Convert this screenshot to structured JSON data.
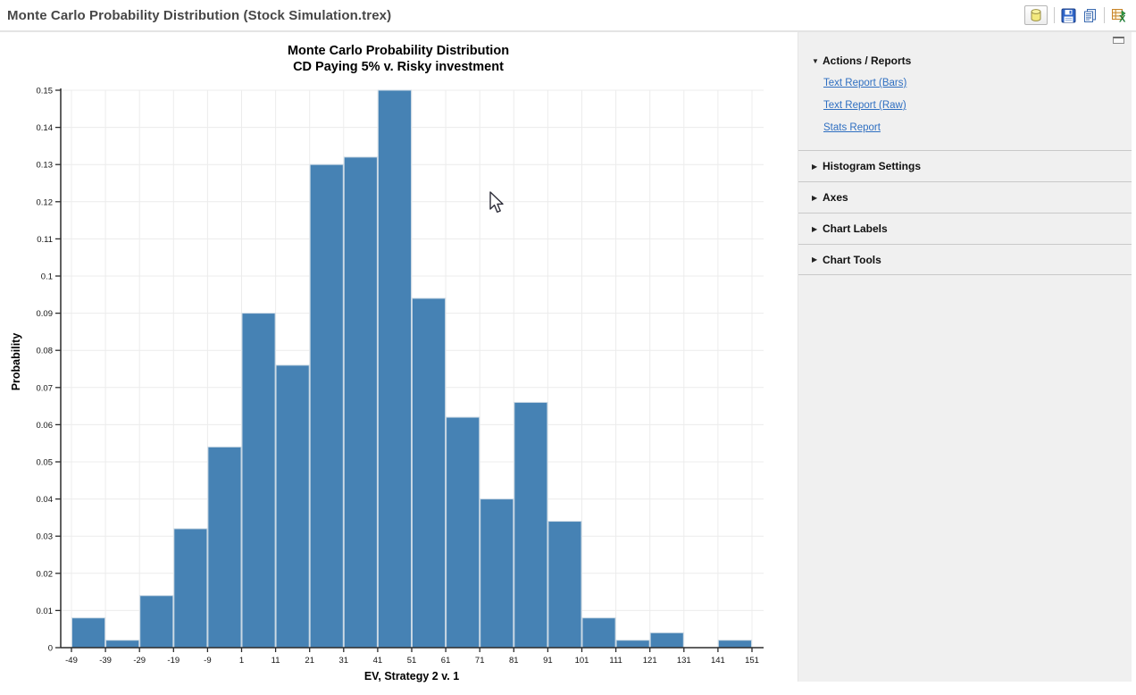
{
  "window": {
    "title": "Monte Carlo Probability Distribution (Stock Simulation.trex)"
  },
  "toolbar": {
    "icons": [
      {
        "name": "database-icon"
      },
      {
        "name": "save-icon"
      },
      {
        "name": "copy-report-icon"
      },
      {
        "name": "export-excel-icon"
      }
    ]
  },
  "chart_data": {
    "type": "bar",
    "title": "Monte Carlo Probability Distribution",
    "subtitle": "CD Paying 5% v. Risky investment",
    "xlabel": "EV, Strategy 2 v. 1",
    "ylabel": "Probability",
    "bin_start": -49,
    "bin_width": 10,
    "x_tick_labels": [
      "-49",
      "-39",
      "-29",
      "-19",
      "-9",
      "1",
      "11",
      "21",
      "31",
      "41",
      "51",
      "61",
      "71",
      "81",
      "91",
      "101",
      "111",
      "121",
      "131",
      "141",
      "151"
    ],
    "values": [
      0.008,
      0.002,
      0.014,
      0.032,
      0.054,
      0.09,
      0.076,
      0.13,
      0.132,
      0.15,
      0.094,
      0.062,
      0.04,
      0.066,
      0.034,
      0.008,
      0.002,
      0.004,
      0,
      0.002
    ],
    "ylim": [
      0,
      0.15
    ],
    "y_tick_step": 0.01,
    "y_tick_labels": [
      "0",
      "0.01",
      "0.02",
      "0.03",
      "0.04",
      "0.05",
      "0.06",
      "0.07",
      "0.08",
      "0.09",
      "0.1",
      "0.11",
      "0.12",
      "0.13",
      "0.14",
      "0.15"
    ],
    "bar_color": "#4682b4",
    "bar_edge_color": "#c9d8e4",
    "grid": true,
    "grid_color": "#ececec",
    "axis_color": "#2b2b2b",
    "legend": null
  },
  "sidebar": {
    "sections": [
      {
        "label": "Actions / Reports",
        "expanded": true,
        "links": [
          "Text Report (Bars)",
          "Text Report (Raw)",
          "Stats Report"
        ]
      },
      {
        "label": "Histogram Settings",
        "expanded": false,
        "links": []
      },
      {
        "label": "Axes",
        "expanded": false,
        "links": []
      },
      {
        "label": "Chart Labels",
        "expanded": false,
        "links": []
      },
      {
        "label": "Chart Tools",
        "expanded": false,
        "links": []
      }
    ]
  }
}
